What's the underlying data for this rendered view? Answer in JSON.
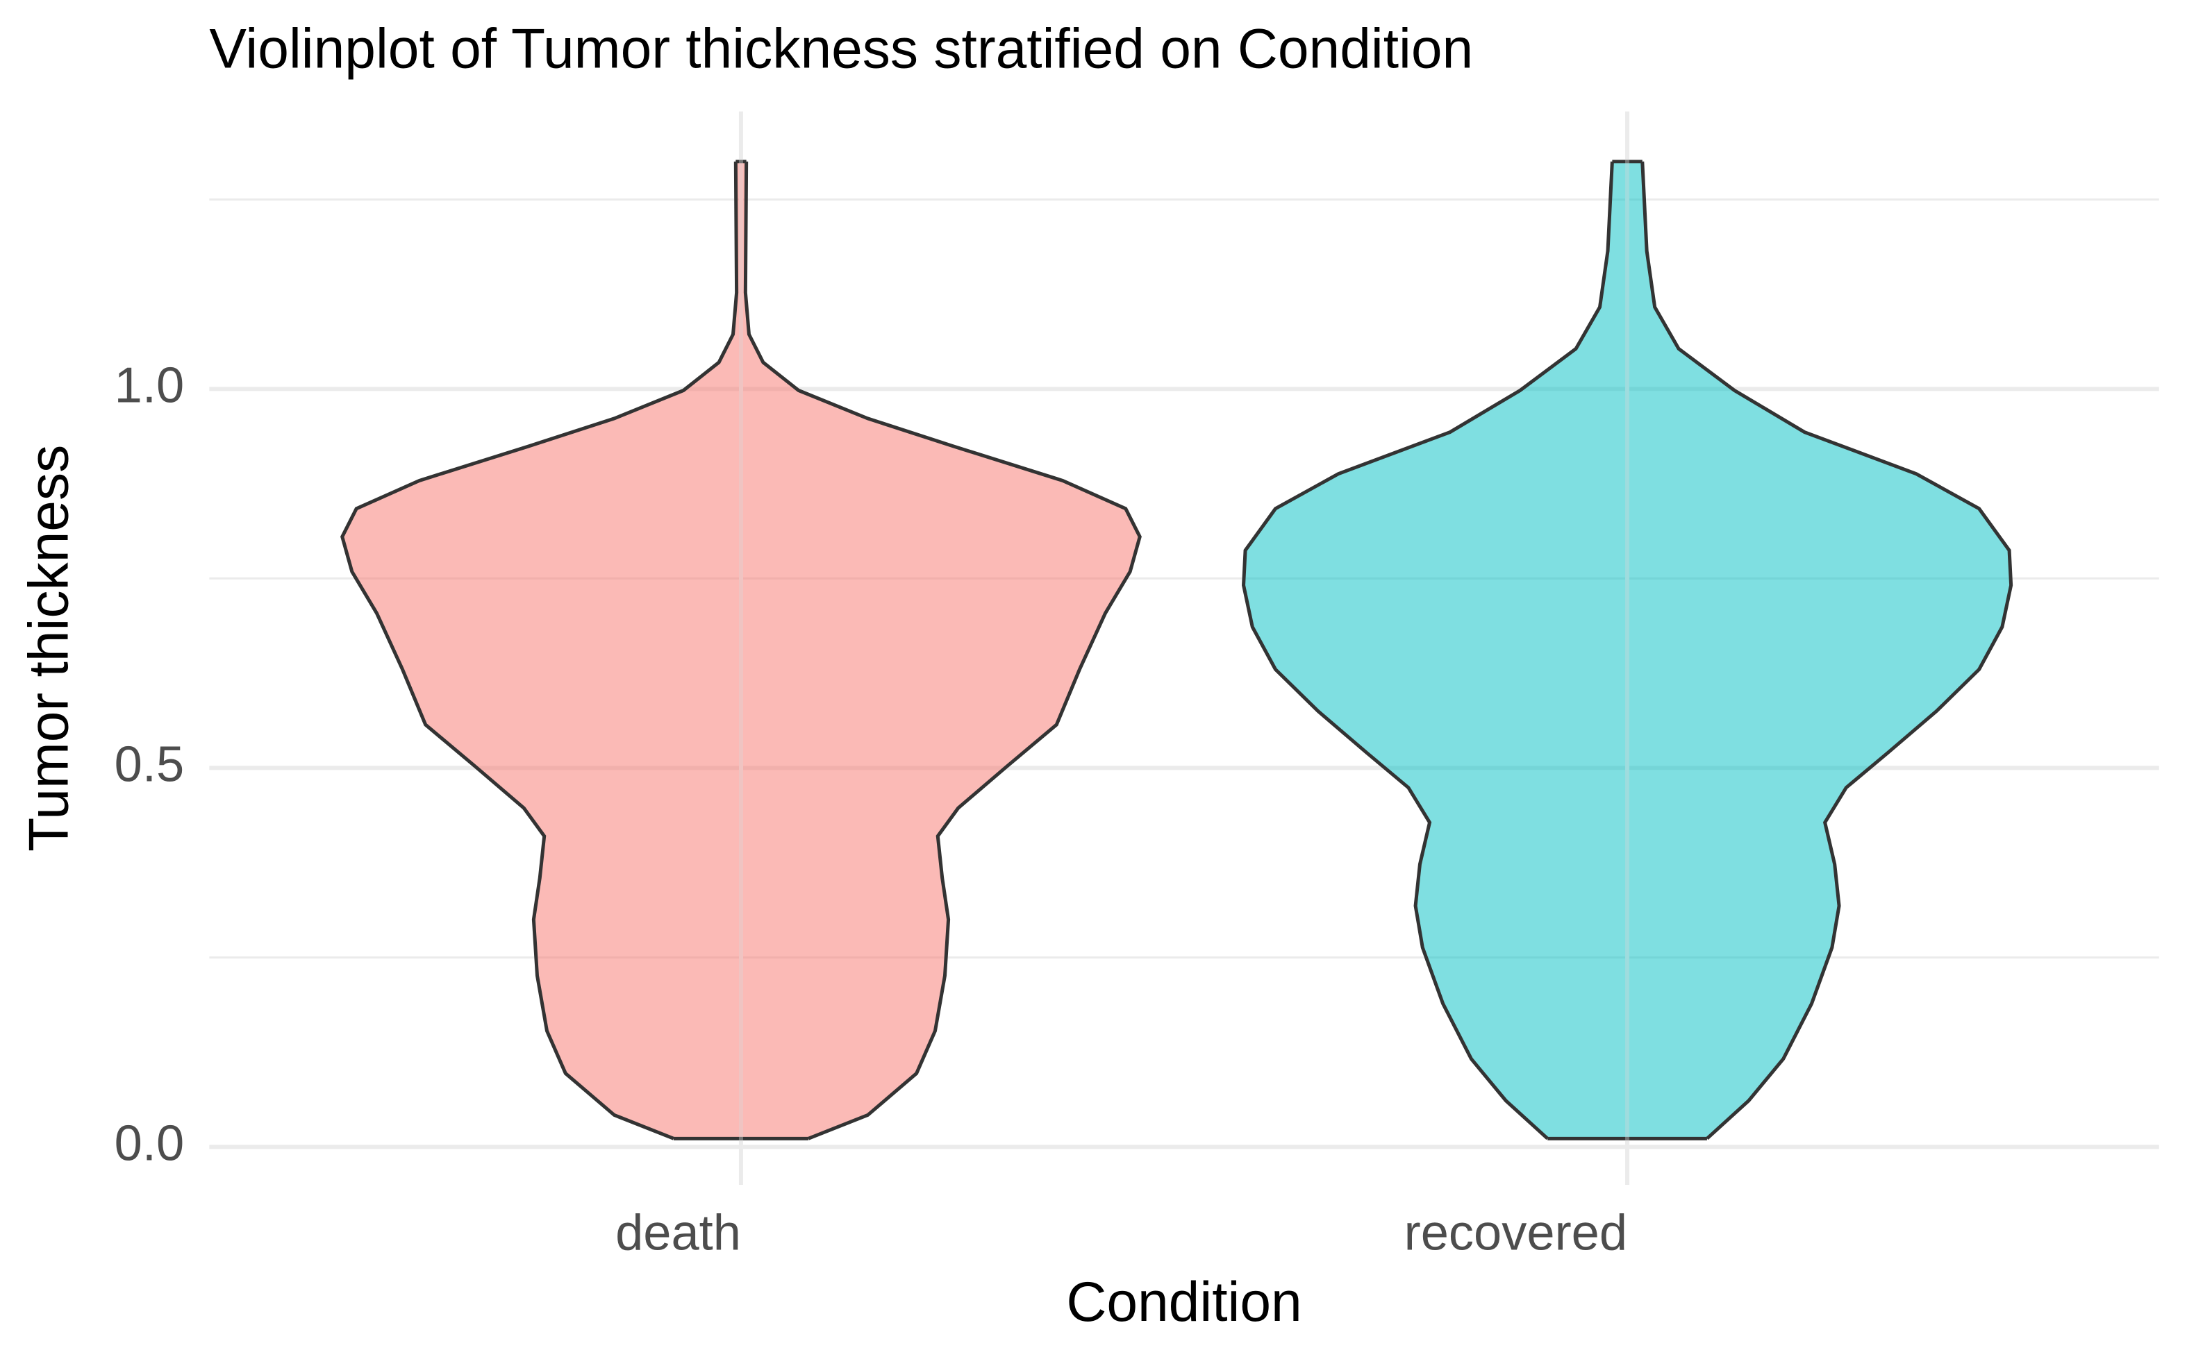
{
  "chart_data": {
    "type": "violin",
    "title": "Violinplot of Tumor thickness stratified on Condition",
    "x_label": "Condition",
    "y_label": "Tumor thickness",
    "categories": [
      "death",
      "recovered"
    ],
    "series": [
      {
        "name": "death",
        "color": "#F8766D",
        "y": [
          0.011,
          0.042,
          0.097,
          0.153,
          0.226,
          0.3,
          0.355,
          0.41,
          0.447,
          0.502,
          0.557,
          0.63,
          0.704,
          0.759,
          0.805,
          0.842,
          0.879,
          0.925,
          0.961,
          0.998,
          1.035,
          1.072,
          1.127,
          1.3
        ],
        "half_widths": [
          0.076,
          0.143,
          0.198,
          0.219,
          0.23,
          0.234,
          0.227,
          0.222,
          0.245,
          0.3,
          0.356,
          0.382,
          0.411,
          0.439,
          0.45,
          0.434,
          0.363,
          0.238,
          0.143,
          0.065,
          0.025,
          0.009,
          0.005,
          0.006
        ]
      },
      {
        "name": "recovered",
        "color": "#00BFC4",
        "y": [
          0.011,
          0.061,
          0.116,
          0.189,
          0.263,
          0.318,
          0.373,
          0.428,
          0.474,
          0.52,
          0.575,
          0.63,
          0.686,
          0.741,
          0.787,
          0.842,
          0.888,
          0.943,
          0.998,
          1.053,
          1.108,
          1.182,
          1.3
        ],
        "half_widths": [
          0.09,
          0.137,
          0.176,
          0.208,
          0.231,
          0.239,
          0.234,
          0.223,
          0.247,
          0.294,
          0.349,
          0.397,
          0.423,
          0.433,
          0.431,
          0.397,
          0.326,
          0.2,
          0.121,
          0.058,
          0.031,
          0.022,
          0.017
        ]
      }
    ],
    "ylim": [
      -0.05,
      1.366
    ],
    "yticks": [
      {
        "value": 0,
        "label": "0.0"
      },
      0.5,
      {
        "value": 1,
        "label": "1.0"
      }
    ],
    "minor_yticks": [
      0.25,
      0.75,
      1.25
    ],
    "grid": true,
    "fill_opacity": 0.5
  }
}
